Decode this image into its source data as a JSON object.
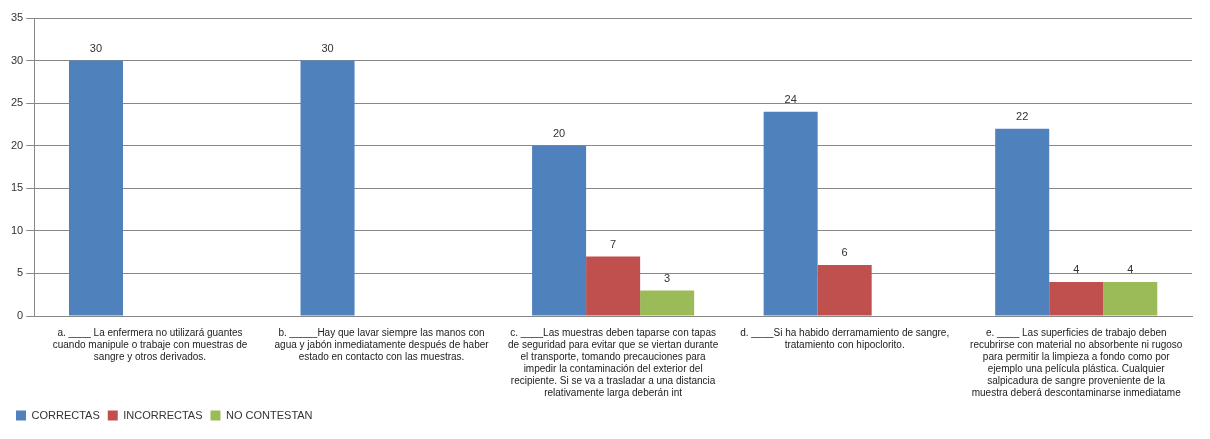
{
  "chart_data": {
    "type": "bar",
    "categories": [
      "a. ____ La enfermera no utilizará guantes cuando manipule o trabaje con muestras de sangre y otros derivados.",
      "b. _____Hay que lavar siempre las manos con agua y jabón inmediatamente después de haber estado en contacto con las muestras.",
      "c. ____Las muestras deben taparse con tapas de seguridad para evitar que se viertan durante el transporte, tomando precauciones para impedir la contaminación del exterior del recipiente. Si se va a trasladar a una distancia relativamente larga deberán int",
      "d. ____Si ha habido derramamiento de sangre, tratamiento con hipoclorito.",
      "e. ____ Las superficies de trabajo deben recubrirse con material no absorbente ni rugoso para permitir la limpieza a fondo como por ejemplo una película plástica. Cualquier salpicadura de sangre proveniente de la muestra deberá descontaminarse inmediatame"
    ],
    "series": [
      {
        "name": "CORRECTAS",
        "color": "#4f81bd",
        "values": [
          30,
          30,
          20,
          24,
          22
        ]
      },
      {
        "name": "INCORRECTAS",
        "color": "#c0504d",
        "values": [
          null,
          null,
          7,
          6,
          4
        ]
      },
      {
        "name": "NO CONTESTAN",
        "color": "#9bbb59",
        "values": [
          null,
          null,
          3,
          null,
          4
        ]
      }
    ],
    "ylim": [
      0,
      35
    ],
    "yticks": [
      0,
      5,
      10,
      15,
      20,
      25,
      30,
      35
    ],
    "grid": "y",
    "legend": "bottom left",
    "data_labels": true
  }
}
